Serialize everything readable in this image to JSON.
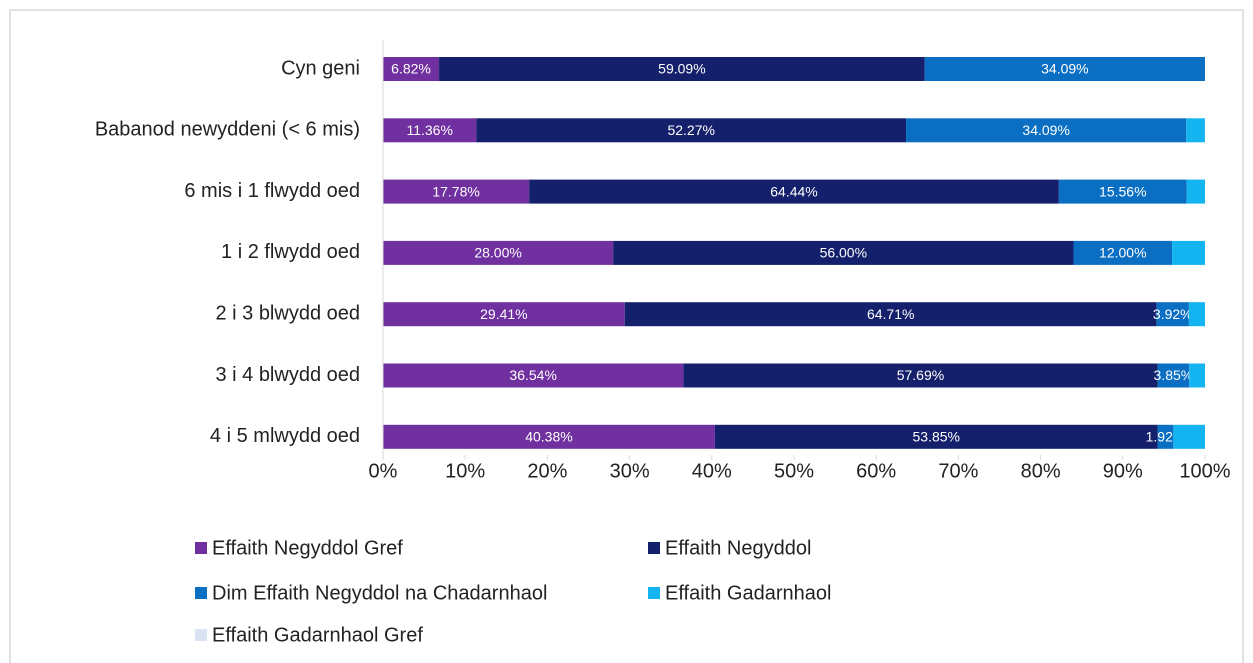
{
  "chart_data": {
    "type": "stacked_bar_horizontal",
    "categories": [
      "Cyn geni",
      "Babanod newyddeni (< 6 mis)",
      "6 mis i 1 flwydd oed",
      "1 i 2 flwydd oed",
      "2 i 3 blwydd oed",
      "3 i 4 blwydd oed",
      "4 i 5 mlwydd oed"
    ],
    "series": [
      {
        "name": "Effaith Negyddol Gref",
        "color": "#7030a0",
        "values": [
          6.82,
          11.36,
          17.78,
          28.0,
          29.41,
          36.54,
          40.38
        ],
        "value_labels": [
          "6.82%",
          "11.36%",
          "17.78%",
          "28.00%",
          "29.41%",
          "36.54%",
          "40.38%"
        ]
      },
      {
        "name": "Effaith Negyddol",
        "color": "#14206b",
        "values": [
          59.09,
          52.27,
          64.44,
          56.0,
          64.71,
          57.69,
          53.85
        ],
        "value_labels": [
          "59.09%",
          "52.27%",
          "64.44%",
          "56.00%",
          "64.71%",
          "57.69%",
          "53.85%"
        ]
      },
      {
        "name": "Dim Effaith Negyddol na Chadarnhaol",
        "color": "#0a6fc2",
        "values": [
          34.09,
          34.09,
          15.56,
          12.0,
          3.92,
          3.85,
          1.92
        ],
        "value_labels": [
          "34.09%",
          "34.09%",
          "15.56%",
          "12.00%",
          "3.92%",
          "3.85%",
          "1.92%"
        ]
      },
      {
        "name": "Effaith Gadarnhaol",
        "color": "#14b4f0",
        "values": [
          0,
          2.27,
          2.22,
          4.0,
          1.96,
          1.92,
          3.85
        ],
        "value_labels": [
          null,
          null,
          null,
          null,
          null,
          null,
          null
        ]
      },
      {
        "name": "Effaith Gadarnhaol Gref",
        "color": "#dae3f3",
        "values": [
          0,
          0,
          0,
          0,
          0,
          0,
          0
        ],
        "value_labels": [
          null,
          null,
          null,
          null,
          null,
          null,
          null
        ]
      }
    ],
    "xlim": [
      0,
      100
    ],
    "xticks": [
      {
        "value": 0,
        "label": "0%"
      },
      {
        "value": 10,
        "label": "10%"
      },
      {
        "value": 20,
        "label": "20%"
      },
      {
        "value": 30,
        "label": "30%"
      },
      {
        "value": 40,
        "label": "40%"
      },
      {
        "value": 50,
        "label": "50%"
      },
      {
        "value": 60,
        "label": "60%"
      },
      {
        "value": 70,
        "label": "70%"
      },
      {
        "value": 80,
        "label": "80%"
      },
      {
        "value": 90,
        "label": "90%"
      },
      {
        "value": 100,
        "label": "100%"
      }
    ],
    "legend": "bottom"
  }
}
